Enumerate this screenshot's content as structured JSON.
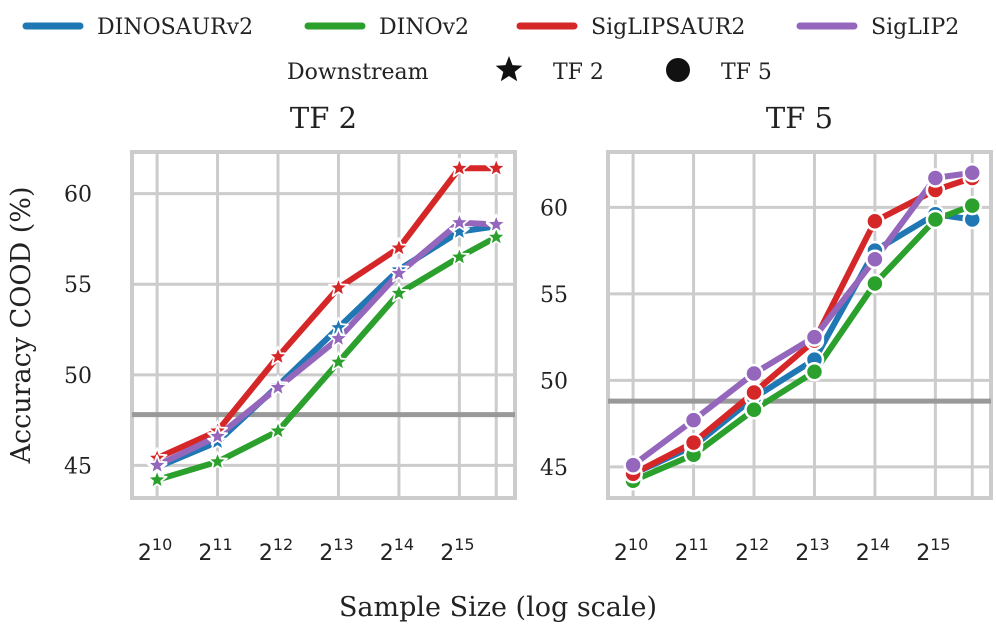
{
  "legend": {
    "series": [
      {
        "name": "DINOSAURv2",
        "color": "#1f77b4"
      },
      {
        "name": "DINOv2",
        "color": "#2ca02c"
      },
      {
        "name": "SigLIPSAUR2",
        "color": "#d62728"
      },
      {
        "name": "SigLIP2",
        "color": "#9467bd"
      }
    ],
    "group_title": "Downstream",
    "markers": [
      {
        "label": "TF 2",
        "marker": "star-icon"
      },
      {
        "label": "TF 5",
        "marker": "circle-icon"
      }
    ]
  },
  "shared": {
    "xlabel": "Sample Size (log scale)",
    "ylabel": "Accuracy COOD (%)",
    "x_tick_base": "2",
    "x_tick_exponents": [
      "10",
      "11",
      "12",
      "13",
      "14",
      "15"
    ]
  },
  "chart_data": [
    {
      "type": "line",
      "title": "TF 2",
      "marker": "star",
      "x": [
        1024,
        2048,
        4096,
        8192,
        16384,
        32768,
        50000
      ],
      "xscale": "log2",
      "xlim": [
        768,
        62000
      ],
      "ylim": [
        43.2,
        62.3
      ],
      "yticks": [
        45,
        50,
        55,
        60
      ],
      "grid": true,
      "baseline": 47.8,
      "baseline_color": "#999999",
      "series": [
        {
          "name": "DINOSAURv2",
          "color": "#1f77b4",
          "values": [
            44.9,
            46.3,
            49.4,
            52.6,
            55.8,
            57.9,
            58.2
          ]
        },
        {
          "name": "DINOv2",
          "color": "#2ca02c",
          "values": [
            44.2,
            45.2,
            46.9,
            50.7,
            54.5,
            56.5,
            57.6
          ]
        },
        {
          "name": "SigLIPSAUR2",
          "color": "#d62728",
          "values": [
            45.4,
            46.9,
            51.0,
            54.8,
            57.0,
            61.4,
            61.4
          ]
        },
        {
          "name": "SigLIP2",
          "color": "#9467bd",
          "values": [
            45.0,
            46.6,
            49.3,
            52.0,
            55.6,
            58.4,
            58.3
          ]
        }
      ]
    },
    {
      "type": "line",
      "title": "TF 5",
      "marker": "circle",
      "x": [
        1024,
        2048,
        4096,
        8192,
        16384,
        32768,
        50000
      ],
      "xscale": "log2",
      "xlim": [
        768,
        62000
      ],
      "ylim": [
        43.2,
        63.2
      ],
      "yticks": [
        45,
        50,
        55,
        60
      ],
      "grid": true,
      "baseline": 48.8,
      "baseline_color": "#999999",
      "series": [
        {
          "name": "DINOSAURv2",
          "color": "#1f77b4",
          "values": [
            44.6,
            46.2,
            49.0,
            51.2,
            57.5,
            59.6,
            59.3
          ]
        },
        {
          "name": "DINOv2",
          "color": "#2ca02c",
          "values": [
            44.2,
            45.7,
            48.3,
            50.5,
            55.6,
            59.3,
            60.1
          ]
        },
        {
          "name": "SigLIPSAUR2",
          "color": "#d62728",
          "values": [
            44.6,
            46.4,
            49.3,
            52.3,
            59.2,
            61.0,
            61.7
          ]
        },
        {
          "name": "SigLIP2",
          "color": "#9467bd",
          "values": [
            45.1,
            47.7,
            50.4,
            52.5,
            57.0,
            61.7,
            62.0
          ]
        }
      ]
    }
  ]
}
